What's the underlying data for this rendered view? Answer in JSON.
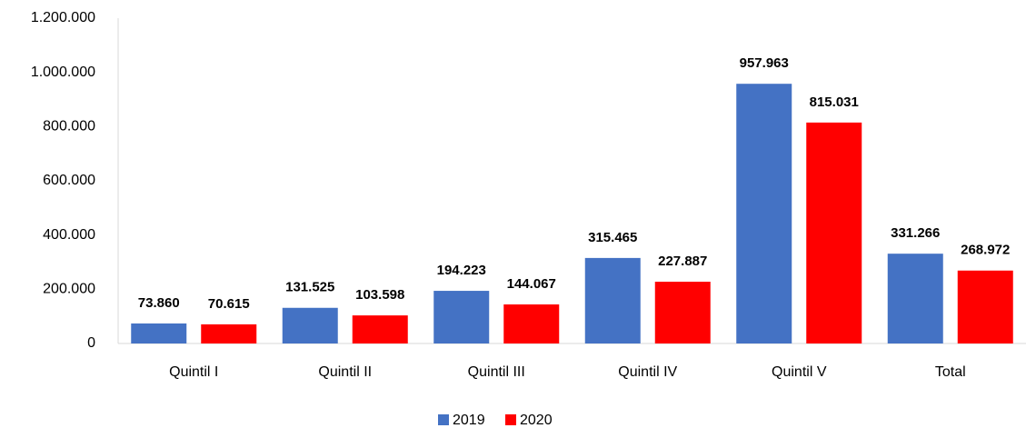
{
  "chart_data": {
    "type": "bar",
    "categories": [
      "Quintil I",
      "Quintil II",
      "Quintil III",
      "Quintil IV",
      "Quintil V",
      "Total"
    ],
    "series": [
      {
        "name": "2019",
        "color": "#4472c4",
        "values": [
          73860,
          131525,
          194223,
          315465,
          957963,
          331266
        ],
        "value_labels": [
          "73.860",
          "131.525",
          "194.223",
          "315.465",
          "957.963",
          "331.266"
        ]
      },
      {
        "name": "2020",
        "color": "#ff0000",
        "values": [
          70615,
          103598,
          144067,
          227887,
          815031,
          268972
        ],
        "value_labels": [
          "70.615",
          "103.598",
          "144.067",
          "227.887",
          "815.031",
          "268.972"
        ]
      }
    ],
    "ylim": [
      0,
      1200000
    ],
    "yticks": [
      0,
      {
        "value": 200000,
        "label": "200.000"
      },
      {
        "value": 400000,
        "label": "400.000"
      },
      {
        "value": 600000,
        "label": "600.000"
      },
      {
        "value": 800000,
        "label": "800.000"
      },
      {
        "value": 1000000,
        "label": "1.000.000"
      },
      {
        "value": 1200000,
        "label": "1.200.000"
      }
    ],
    "grid": false,
    "legend": "bottom"
  }
}
